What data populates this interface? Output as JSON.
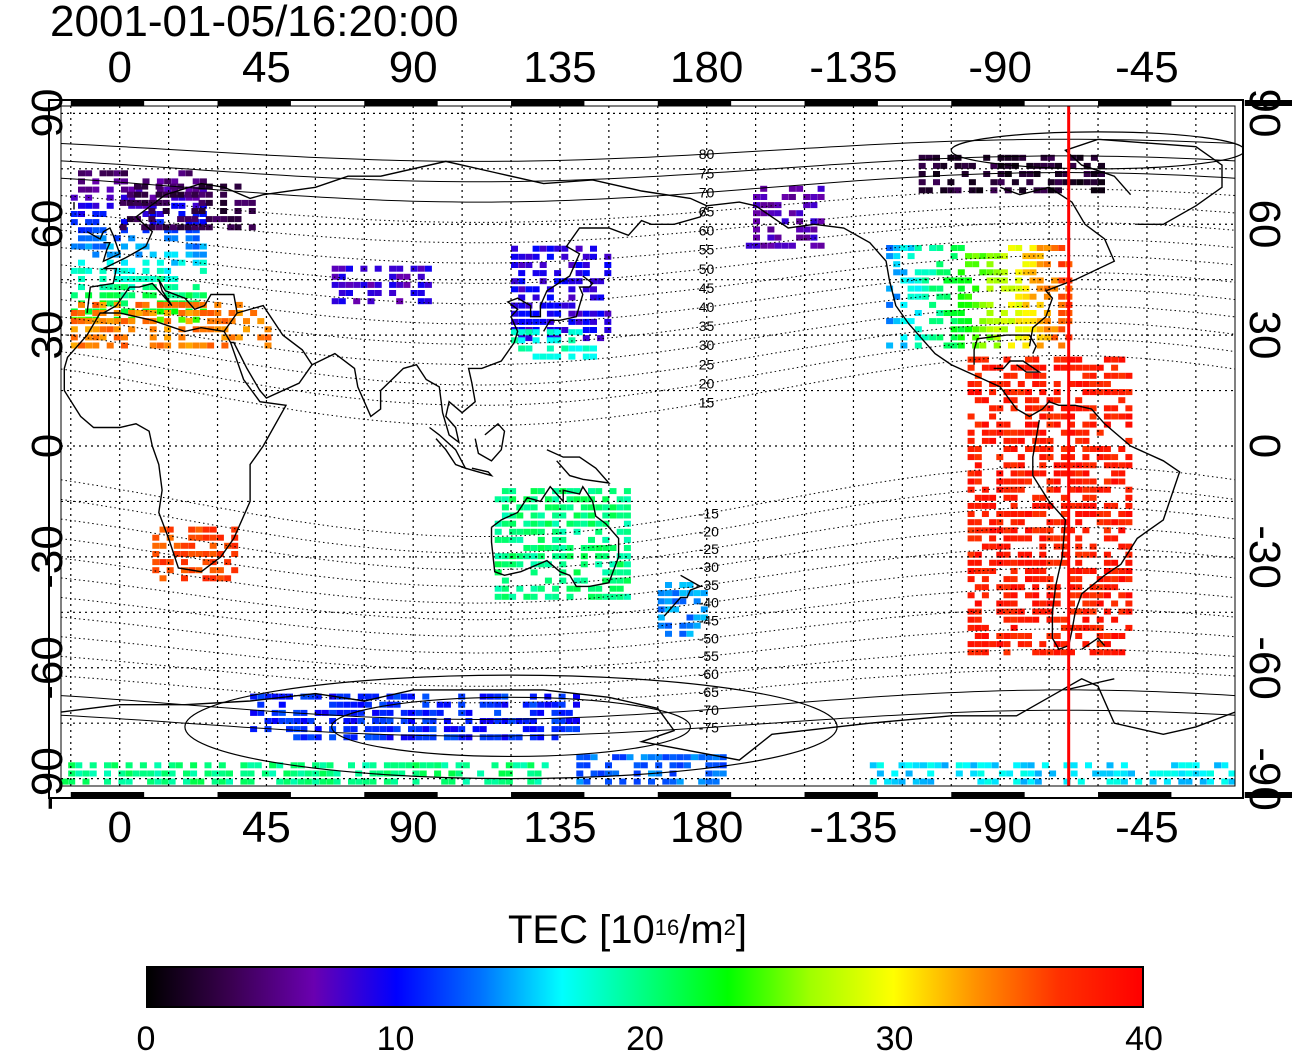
{
  "timestamp": "2001-01-05/16:20:00",
  "map": {
    "lon_min": -18,
    "lon_max": 342,
    "lat_min": -92,
    "lat_max": 92,
    "grid_lon_step": 15,
    "grid_lat_step": 15,
    "meridian_line_lon": -69,
    "meridian_line_color": "#ff0000"
  },
  "axes": {
    "top_ticks": [
      "0",
      "45",
      "90",
      "135",
      "180",
      "-135",
      "-90",
      "-45"
    ],
    "bottom_ticks": [
      "0",
      "45",
      "90",
      "135",
      "180",
      "-135",
      "-90",
      "-45"
    ],
    "left_ticks": [
      "90",
      "60",
      "30",
      "0",
      "-30",
      "-60",
      "-90"
    ],
    "right_ticks": [
      "90",
      "60",
      "30",
      "0",
      "-30",
      "-60",
      "-90"
    ]
  },
  "contour_labels": [
    "80",
    "75",
    "70",
    "65",
    "60",
    "55",
    "50",
    "45",
    "40",
    "35",
    "30",
    "25",
    "20",
    "15",
    "-15",
    "-20",
    "-25",
    "-30",
    "-35",
    "-40",
    "-45",
    "-50",
    "-55",
    "-60",
    "-65",
    "-70",
    "-75"
  ],
  "colorbar": {
    "title_prefix": "TEC  [10",
    "title_exp1": "16",
    "title_mid": "/m",
    "title_exp2": "2",
    "title_suffix": "]",
    "tick_labels": [
      "0",
      "10",
      "20",
      "30",
      "40"
    ],
    "stops": [
      "#000000",
      "#3a0050",
      "#6a00b0",
      "#0000ff",
      "#0070ff",
      "#00ffff",
      "#00ff80",
      "#00ff00",
      "#a0ff00",
      "#ffff00",
      "#ff9000",
      "#ff3000",
      "#ff0000"
    ]
  },
  "chart_data": {
    "type": "heatmap",
    "title": "2001-01-05/16:20:00",
    "colorbar_label": "TEC [10^16/m^2]",
    "value_range": [
      0,
      40
    ],
    "regions": [
      {
        "lon_min": -15,
        "lon_max": 25,
        "lat_min": 35,
        "lat_max": 75,
        "value": 14,
        "gradient": "north_low"
      },
      {
        "lon_min": 0,
        "lon_max": 40,
        "lat_min": 60,
        "lat_max": 72,
        "value": 3
      },
      {
        "lon_min": -15,
        "lon_max": 45,
        "lat_min": 28,
        "lat_max": 40,
        "value": 34
      },
      {
        "lon_min": 65,
        "lon_max": 95,
        "lat_min": 40,
        "lat_max": 50,
        "value": 8
      },
      {
        "lon_min": 120,
        "lon_max": 150,
        "lat_min": 30,
        "lat_max": 55,
        "value": 9
      },
      {
        "lon_min": 120,
        "lon_max": 145,
        "lat_min": 25,
        "lat_max": 32,
        "value": 18
      },
      {
        "lon_min": 192,
        "lon_max": 215,
        "lat_min": 55,
        "lat_max": 72,
        "value": 7
      },
      {
        "lon_min": 235,
        "lon_max": 290,
        "lat_min": 28,
        "lat_max": 55,
        "value": 26,
        "gradient": "west_low"
      },
      {
        "lon_min": 260,
        "lon_max": 310,
        "lat_min": -55,
        "lat_max": 25,
        "value": 38
      },
      {
        "lon_min": 10,
        "lon_max": 35,
        "lat_min": -35,
        "lat_max": -20,
        "value": 36
      },
      {
        "lon_min": 115,
        "lon_max": 155,
        "lat_min": -40,
        "lat_max": -10,
        "value": 20
      },
      {
        "lon_min": 165,
        "lon_max": 180,
        "lat_min": -50,
        "lat_max": -35,
        "value": 14
      },
      {
        "lon_min": 40,
        "lon_max": 140,
        "lat_min": -78,
        "lat_max": -65,
        "value": 11
      },
      {
        "lon_min": -18,
        "lon_max": 130,
        "lat_min": -90,
        "lat_max": -85,
        "value": 20
      },
      {
        "lon_min": 140,
        "lon_max": 185,
        "lat_min": -90,
        "lat_max": -82,
        "value": 13
      },
      {
        "lon_min": 230,
        "lon_max": 340,
        "lat_min": -90,
        "lat_max": -85,
        "value": 16
      },
      {
        "lon_min": 245,
        "lon_max": 300,
        "lat_min": 70,
        "lat_max": 80,
        "value": 2
      }
    ]
  }
}
